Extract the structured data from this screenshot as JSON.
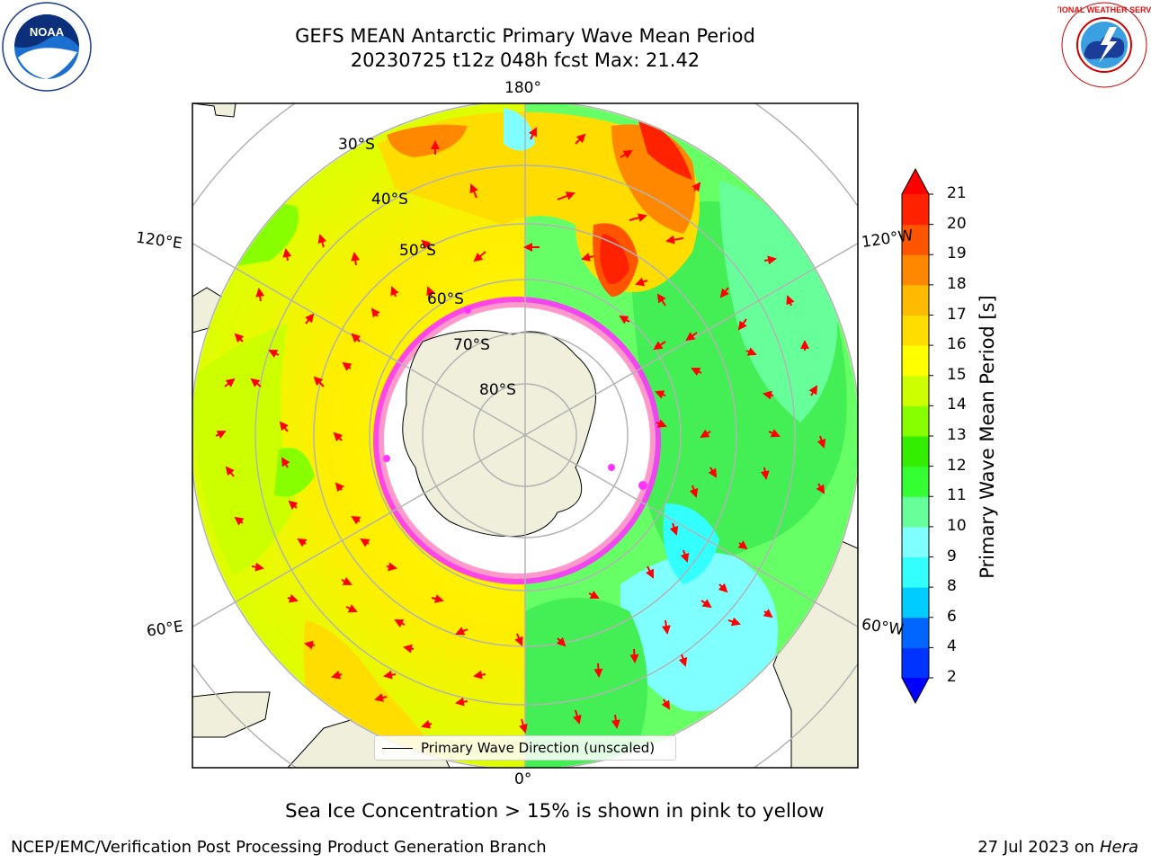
{
  "title": {
    "line1": "GEFS MEAN Antarctic Primary Wave Mean Period",
    "line2": "20230725 t12z 048h fcst   Max: 21.42"
  },
  "logos": {
    "noaa": {
      "text": "NOAA",
      "ring_text": "NATIONAL OCEANIC AND ATMOSPHERIC ADMINISTRATION · U.S. DEPARTMENT OF COMMERCE"
    },
    "nws": {
      "ring_text": "NATIONAL WEATHER SERVICE"
    }
  },
  "map": {
    "projection": "south-polar-stereographic",
    "latitude_labels": [
      "30°S",
      "40°S",
      "50°S",
      "60°S",
      "70°S",
      "80°S"
    ],
    "longitude_labels": {
      "top": "180°",
      "bottom": "0°",
      "left_upper": "120°E",
      "left_lower": "60°E",
      "right_upper": "120°W",
      "right_lower": "60°W"
    },
    "legend_label": "Primary Wave Direction (unscaled)",
    "arrow_color": "#ff0000",
    "land_color": "#efefdb",
    "ice_colors": [
      "#ff33ff",
      "#ff99cc",
      "#ffcc33"
    ]
  },
  "colorbar": {
    "label": "Primary Wave Mean Period [s]",
    "ticks": [
      "2",
      "4",
      "6",
      "8",
      "9",
      "10",
      "11",
      "12",
      "13",
      "14",
      "15",
      "16",
      "17",
      "18",
      "19",
      "20",
      "21"
    ],
    "colors": [
      "#0033ff",
      "#0066ff",
      "#00ccff",
      "#33ffff",
      "#7fffff",
      "#66ff99",
      "#33ff33",
      "#33ee00",
      "#88ff00",
      "#ccff00",
      "#ffff00",
      "#ffdd00",
      "#ffbb00",
      "#ff8800",
      "#ff5500",
      "#ff2200"
    ],
    "under_color": "#0000ff",
    "over_color": "#ff0000"
  },
  "caption": "Sea Ice Concentration > 15% is shown in pink to yellow",
  "footer": {
    "left": "NCEP/EMC/Verification Post Processing Product Generation Branch",
    "right_date": "27 Jul 2023 on ",
    "right_host": "Hera"
  }
}
